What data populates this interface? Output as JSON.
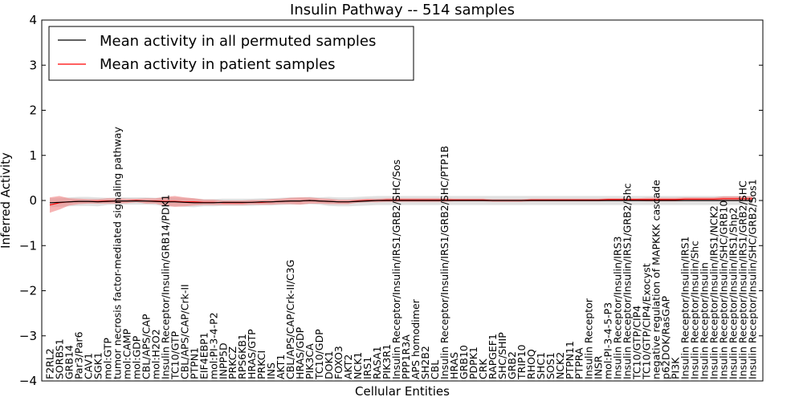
{
  "chart_data": {
    "type": "line",
    "title": "Insulin Pathway -- 514 samples",
    "xlabel": "Cellular Entities",
    "ylabel": "Inferred Activity",
    "ylim": [
      -4,
      4
    ],
    "yticks": [
      "4",
      "3",
      "2",
      "1",
      "0",
      "−1",
      "−2",
      "−3",
      "−4"
    ],
    "grid": false,
    "legend_position": "top-left",
    "colors": {
      "permuted": "#000000",
      "patient": "#ff0000",
      "patient_band": "#f08080",
      "permuted_band": "#c8c8c8"
    },
    "categories": [
      "F2RL2",
      "SORBS1",
      "GRB14",
      "Par3/Par6",
      "CAV1",
      "SGK1",
      "mol:GTP",
      "tumor necrosis factor-mediated signaling pathway",
      "mol:CAMP",
      "mol:GDP",
      "CBL/APS/CAP",
      "mol:H2O2",
      "Insulin Receptor/Insulin/GRB14/PDK1",
      "TC10/GTP",
      "CBL/APS/CAP/Crk-II",
      "PTPN1",
      "EIF4EBP1",
      "mol:PI-3-4-P2",
      "INPP5D",
      "PRKCZ",
      "RPS6KB1",
      "HRAS/GTP",
      "PRKCI",
      "INS",
      "AKT1",
      "CBL/APS/CAP/Crk-II/C3G",
      "HRAS/GDP",
      "PIK3CA",
      "TC10/GDP",
      "DOK1",
      "FOXO3",
      "AKT2",
      "NCK1",
      "IRS1",
      "RASA1",
      "PIK3R1",
      "Insulin Receptor/Insulin/IRS1/GRB2/SHC/Sos",
      "PPP1R3A",
      "APS homodimer",
      "SH2B2",
      "CBL",
      "Insulin Receptor/Insulin/IRS1/GRB2/SHC/PTP1B",
      "HRAS",
      "GRB10",
      "PDPK1",
      "CRK",
      "RAPGEF1",
      "SHC/SHIP",
      "GRB2",
      "TRIP10",
      "RHOQ",
      "SHC1",
      "SOS1",
      "NCK2",
      "PTPN11",
      "PTPRA",
      "Insulin Receptor",
      "INSR",
      "mol:PI-3-4-5-P3",
      "Insulin Receptor/Insulin/IRS3",
      "Insulin Receptor/Insulin/IRS1/GRB2/Shc",
      "TC10/GTP/CIP4",
      "TC10/GTP/CIP4/Exocyst",
      "negative regulation of MAPKKK cascade",
      "p62DOK/RasGAP",
      "PI3K",
      "Insulin Receptor/Insulin/IRS1",
      "Insulin Receptor/Insulin/Shc",
      "Insulin Receptor/Insulin",
      "Insulin Receptor/Insulin/IRS1/NCK2",
      "Insulin Receptor/Insulin/SHC/GRB10",
      "Insulin Receptor/Insulin/IRS1/Shp2",
      "Insulin Receptor/Insulin/IRS1/GRB2/SHC",
      "Insulin Receptor/Insulin/SHC/GRB2/Sos1"
    ],
    "series": [
      {
        "name": "Mean activity in all permuted samples",
        "color": "#000000",
        "values": [
          -0.05,
          -0.04,
          -0.03,
          -0.02,
          -0.02,
          -0.03,
          -0.02,
          -0.01,
          -0.01,
          -0.01,
          -0.01,
          -0.02,
          -0.03,
          -0.03,
          -0.04,
          -0.05,
          -0.05,
          -0.05,
          -0.04,
          -0.04,
          -0.04,
          -0.04,
          -0.03,
          -0.03,
          -0.02,
          -0.01,
          -0.01,
          0.0,
          -0.01,
          -0.02,
          -0.03,
          -0.03,
          -0.02,
          -0.01,
          0.0,
          0.0,
          0.0,
          0.0,
          0.0,
          0.0,
          0.0,
          0.0,
          0.0,
          0.0,
          0.0,
          0.0,
          0.0,
          0.0,
          0.0,
          0.0,
          0.0,
          0.0,
          0.0,
          0.0,
          0.0,
          0.0,
          0.0,
          0.0,
          0.0,
          0.0,
          0.0,
          0.0,
          0.0,
          0.0,
          0.0,
          0.0,
          0.0,
          0.0,
          0.0,
          0.0,
          0.0,
          0.0,
          0.0,
          0.0
        ],
        "spread": [
          0.1,
          0.1,
          0.1,
          0.1,
          0.1,
          0.1,
          0.08,
          0.08,
          0.08,
          0.08,
          0.08,
          0.08,
          0.1,
          0.1,
          0.1,
          0.1,
          0.08,
          0.08,
          0.08,
          0.08,
          0.08,
          0.08,
          0.08,
          0.08,
          0.08,
          0.08,
          0.08,
          0.08,
          0.08,
          0.1,
          0.1,
          0.1,
          0.1,
          0.1,
          0.1,
          0.1,
          0.1,
          0.1,
          0.1,
          0.1,
          0.1,
          0.1,
          0.1,
          0.1,
          0.1,
          0.1,
          0.1,
          0.1,
          0.1,
          0.1,
          0.1,
          0.1,
          0.1,
          0.1,
          0.1,
          0.1,
          0.1,
          0.1,
          0.1,
          0.1,
          0.1,
          0.1,
          0.1,
          0.1,
          0.1,
          0.1,
          0.1,
          0.1,
          0.1,
          0.1,
          0.1,
          0.1,
          0.1,
          0.1
        ]
      },
      {
        "name": "Mean activity in patient samples",
        "color": "#ff0000",
        "values": [
          -0.1,
          -0.05,
          -0.03,
          -0.02,
          -0.02,
          -0.02,
          -0.01,
          -0.01,
          -0.01,
          0.0,
          -0.01,
          -0.01,
          -0.02,
          -0.02,
          -0.03,
          -0.03,
          -0.04,
          -0.04,
          -0.05,
          -0.05,
          -0.05,
          -0.04,
          -0.04,
          -0.03,
          -0.02,
          -0.01,
          -0.01,
          0.0,
          -0.01,
          -0.02,
          -0.03,
          -0.03,
          -0.01,
          0.0,
          0.0,
          0.01,
          0.01,
          0.01,
          0.01,
          0.01,
          0.01,
          0.01,
          0.01,
          0.01,
          0.01,
          0.01,
          0.0,
          0.0,
          0.0,
          0.0,
          0.01,
          0.01,
          0.01,
          0.01,
          0.01,
          0.01,
          0.01,
          0.01,
          0.02,
          0.02,
          0.02,
          0.02,
          0.02,
          0.02,
          0.02,
          0.02,
          0.03,
          0.03,
          0.03,
          0.03,
          0.04,
          0.04,
          0.04,
          0.04
        ],
        "spread": [
          0.17,
          0.15,
          0.08,
          0.06,
          0.05,
          0.05,
          0.06,
          0.06,
          0.05,
          0.04,
          0.06,
          0.06,
          0.1,
          0.12,
          0.1,
          0.08,
          0.06,
          0.06,
          0.05,
          0.05,
          0.05,
          0.05,
          0.05,
          0.06,
          0.06,
          0.07,
          0.08,
          0.07,
          0.06,
          0.06,
          0.05,
          0.05,
          0.04,
          0.04,
          0.04,
          0.04,
          0.04,
          0.04,
          0.04,
          0.04,
          0.04,
          0.04,
          0.03,
          0.03,
          0.03,
          0.03,
          0.03,
          0.03,
          0.03,
          0.03,
          0.03,
          0.03,
          0.03,
          0.03,
          0.03,
          0.03,
          0.03,
          0.03,
          0.03,
          0.03,
          0.03,
          0.03,
          0.04,
          0.04,
          0.04,
          0.04,
          0.04,
          0.04,
          0.04,
          0.04,
          0.05,
          0.05,
          0.05,
          0.05
        ]
      }
    ]
  }
}
